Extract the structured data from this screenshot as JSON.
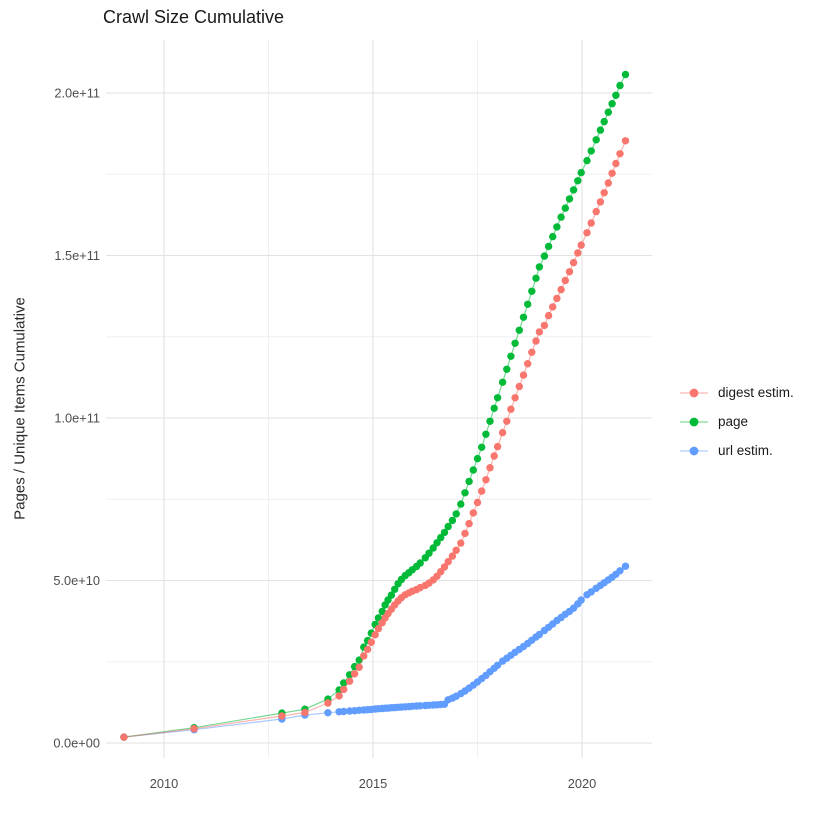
{
  "title": "Crawl Size Cumulative",
  "y_axis": {
    "label": "Pages / Unique Items Cumulative",
    "tick_labels": [
      "0.0e+00",
      "5.0e+10",
      "1.0e+11",
      "1.5e+11",
      "2.0e+11"
    ]
  },
  "x_axis": {
    "tick_labels": [
      "2010",
      "2015",
      "2020"
    ]
  },
  "legend": {
    "items": [
      {
        "label": "digest estim.",
        "color": "#F8766D"
      },
      {
        "label": "page",
        "color": "#00BA38"
      },
      {
        "label": "url estim.",
        "color": "#619CFF"
      }
    ]
  },
  "colors": {
    "grid_major": "#E2E2E2",
    "grid_minor": "#F0F0F0",
    "tick_text": "#4D4D4D"
  },
  "chart_data": {
    "type": "line",
    "marker": "point",
    "title": "Crawl Size Cumulative",
    "xlabel": "",
    "ylabel": "Pages / Unique Items Cumulative",
    "xlim": [
      2008.6,
      2021.7
    ],
    "ylim": [
      0,
      216000000000.0
    ],
    "grid": true,
    "legend_position": "right",
    "x_ticks": {
      "values": [
        2010,
        2015,
        2020
      ],
      "labels": [
        "2010",
        "2015",
        "2020"
      ],
      "minor": [
        2012.5,
        2017.5
      ]
    },
    "y_ticks": {
      "values": [
        0,
        50000000000.0,
        100000000000.0,
        150000000000.0,
        200000000000.0
      ],
      "labels": [
        "0.0e+00",
        "5.0e+10",
        "1.0e+11",
        "1.5e+11",
        "2.0e+11"
      ],
      "minor": [
        25000000000.0,
        75000000000.0,
        125000000000.0,
        175000000000.0
      ]
    },
    "value_scale": 1000000000.0,
    "x": [
      2009.04,
      2010.72,
      2012.82,
      2013.37,
      2013.92,
      2014.19,
      2014.3,
      2014.44,
      2014.56,
      2014.67,
      2014.78,
      2014.87,
      2014.96,
      2015.05,
      2015.13,
      2015.22,
      2015.29,
      2015.36,
      2015.44,
      2015.52,
      2015.6,
      2015.68,
      2015.77,
      2015.86,
      2015.94,
      2016.04,
      2016.13,
      2016.25,
      2016.34,
      2016.44,
      2016.53,
      2016.62,
      2016.71,
      2016.8,
      2016.9,
      2016.99,
      2017.1,
      2017.2,
      2017.3,
      2017.4,
      2017.5,
      2017.6,
      2017.7,
      2017.8,
      2017.9,
      2017.98,
      2018.1,
      2018.2,
      2018.3,
      2018.4,
      2018.5,
      2018.6,
      2018.7,
      2018.8,
      2018.9,
      2018.98,
      2019.1,
      2019.2,
      2019.3,
      2019.4,
      2019.5,
      2019.6,
      2019.7,
      2019.8,
      2019.9,
      2019.98,
      2020.12,
      2020.22,
      2020.34,
      2020.44,
      2020.53,
      2020.63,
      2020.72,
      2020.81,
      2020.91,
      2021.04
    ],
    "series": [
      {
        "name": "digest estim.",
        "color": "#F8766D",
        "values_billions": [
          1.8,
          4.4,
          8.3,
          9.4,
          12.3,
          14.5,
          16.5,
          19,
          21.3,
          23.3,
          26.8,
          28.8,
          31,
          33.3,
          35.2,
          37,
          38.5,
          39.8,
          41.2,
          42.5,
          43.7,
          44.7,
          45.6,
          46.2,
          46.7,
          47.2,
          47.8,
          48.5,
          49.2,
          50.2,
          51.3,
          52.7,
          54.2,
          55.8,
          57.5,
          59.3,
          61.5,
          64.5,
          67.5,
          70.8,
          74,
          77.5,
          81,
          84.7,
          88.3,
          91.2,
          95.5,
          99,
          102.7,
          106.2,
          109.7,
          113.2,
          116.7,
          120.2,
          123.7,
          126.5,
          128.5,
          131.5,
          134.2,
          136.8,
          139.5,
          142.3,
          145,
          147.8,
          150.8,
          153.2,
          157,
          160,
          163.5,
          166.5,
          169.3,
          172.3,
          175.3,
          178.3,
          181.3,
          185.3
        ]
      },
      {
        "name": "page",
        "color": "#00BA38",
        "values_billions": [
          1.8,
          4.7,
          9.2,
          10.4,
          13.5,
          16.3,
          18.5,
          21,
          23.5,
          25.5,
          29.5,
          31.5,
          33.8,
          36.5,
          38.5,
          40.5,
          42.5,
          44,
          45.5,
          47.3,
          49,
          50.3,
          51.5,
          52.4,
          53.3,
          54.3,
          55.4,
          57,
          58.4,
          60,
          61.6,
          63.2,
          64.8,
          66.6,
          68.5,
          70.5,
          73.5,
          77,
          80.5,
          84,
          87.5,
          91,
          95,
          99,
          103,
          106.2,
          111,
          115,
          119,
          123,
          127,
          131,
          135,
          139,
          143,
          146.5,
          149.8,
          152.8,
          155.8,
          158.8,
          161.8,
          164.6,
          167.4,
          170.2,
          173,
          175.5,
          179.2,
          182.2,
          185.6,
          188.6,
          191.2,
          194.1,
          196.7,
          199.3,
          202.3,
          205.7
        ]
      },
      {
        "name": "url estim.",
        "color": "#619CFF",
        "values_billions": [
          1.8,
          4.1,
          7.4,
          8.6,
          9.3,
          9.6,
          9.7,
          9.85,
          9.95,
          10.05,
          10.15,
          10.25,
          10.35,
          10.45,
          10.55,
          10.6,
          10.7,
          10.75,
          10.85,
          10.9,
          11,
          11.05,
          11.15,
          11.2,
          11.3,
          11.4,
          11.45,
          11.55,
          11.6,
          11.7,
          11.75,
          11.85,
          11.95,
          13.3,
          13.8,
          14.4,
          15.2,
          16,
          16.9,
          17.8,
          18.8,
          19.8,
          20.8,
          21.9,
          23,
          23.9,
          25.2,
          26.1,
          27,
          27.9,
          28.8,
          29.7,
          30.6,
          31.6,
          32.6,
          33.4,
          34.6,
          35.6,
          36.6,
          37.7,
          38.6,
          39.6,
          40.5,
          41.5,
          42.8,
          44,
          45.6,
          46.5,
          47.6,
          48.5,
          49.3,
          50.2,
          51,
          51.9,
          53,
          54.4
        ]
      }
    ]
  }
}
